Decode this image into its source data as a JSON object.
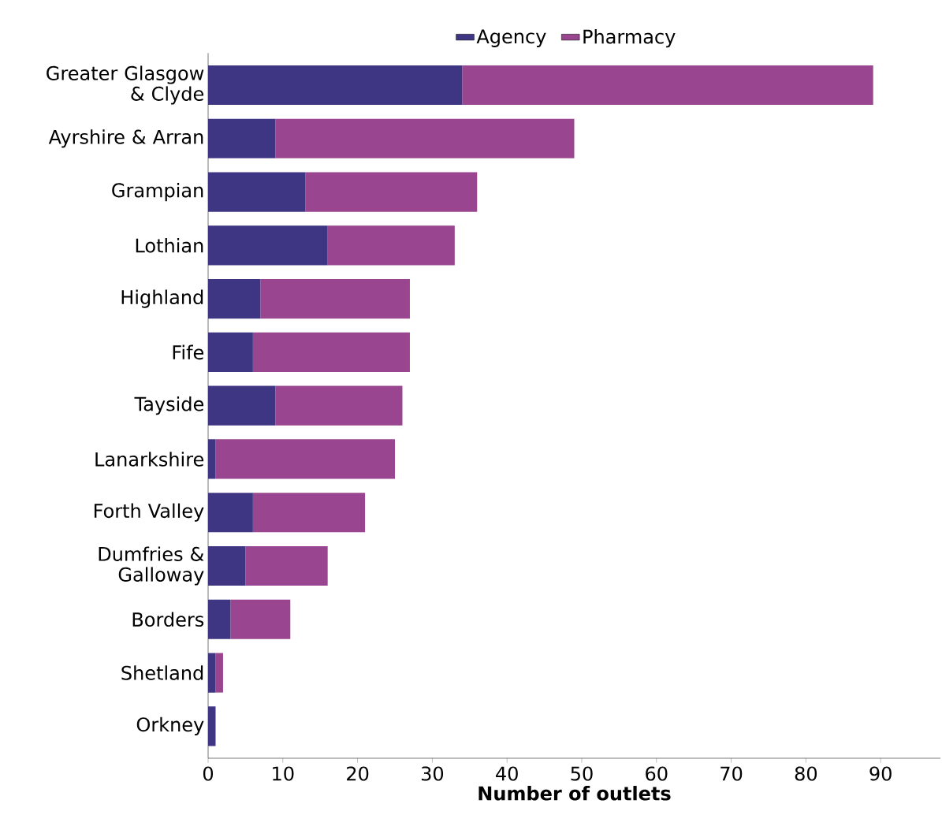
{
  "chart_data": {
    "type": "bar",
    "orientation": "horizontal",
    "stacked": true,
    "categories": [
      "Greater Glasgow & Clyde",
      "Ayrshire & Arran",
      "Grampian",
      "Lothian",
      "Highland",
      "Fife",
      "Tayside",
      "Lanarkshire",
      "Forth Valley",
      "Dumfries & Galloway",
      "Borders",
      "Shetland",
      "Orkney"
    ],
    "series": [
      {
        "name": "Agency",
        "color": "#3f3683",
        "values": [
          34,
          9,
          13,
          16,
          7,
          6,
          9,
          1,
          6,
          5,
          3,
          1,
          1
        ]
      },
      {
        "name": "Pharmacy",
        "color": "#99458f",
        "values": [
          55,
          40,
          23,
          17,
          20,
          21,
          17,
          24,
          15,
          11,
          8,
          1,
          0
        ]
      }
    ],
    "xlabel": "**Number of outlets**",
    "xlim": [
      0,
      98
    ],
    "xticks": [
      0,
      10,
      20,
      30,
      40,
      50,
      60,
      70,
      80,
      90
    ],
    "legend": "top",
    "grid": false
  }
}
